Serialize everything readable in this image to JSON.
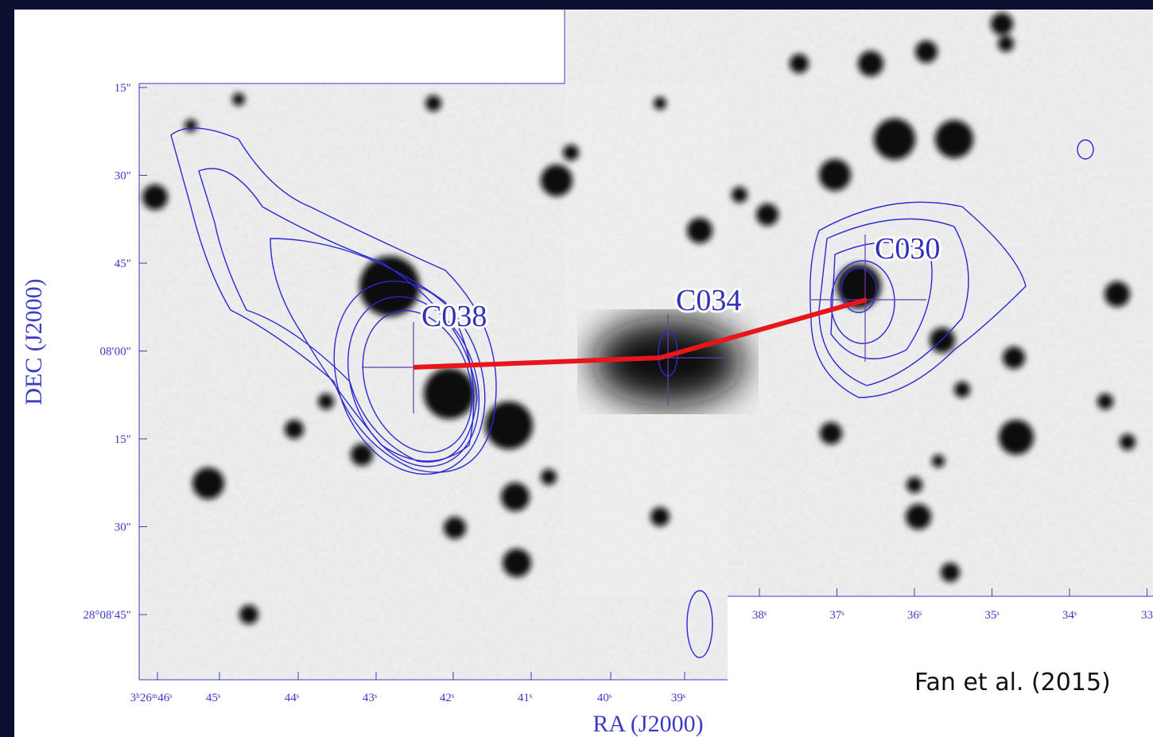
{
  "figure": {
    "ylabel": "DEC (J2000)",
    "xlabel": "RA (J2000)",
    "yticks": [
      "15″",
      "30″",
      "45″",
      "08′00″",
      "15″",
      "30″",
      "28°08′45″"
    ],
    "xticks": [
      "3ʰ26ᵐ46ˢ",
      "45ˢ",
      "44ˢ",
      "43ˢ",
      "42ˢ",
      "41ˢ",
      "40ˢ",
      "39ˢ"
    ],
    "xticks_right": [
      "38ˢ",
      "37ˢ",
      "36ˢ",
      "35ˢ",
      "34ˢ",
      "33"
    ],
    "sources": [
      "C038",
      "C034",
      "C030"
    ],
    "citation": "Fan et al. (2015)"
  }
}
